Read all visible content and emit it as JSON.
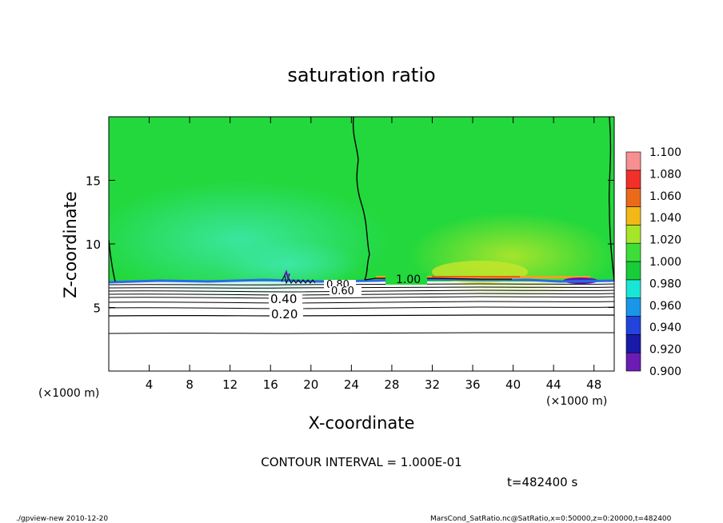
{
  "chart_data": {
    "type": "heatmap",
    "title": "saturation ratio",
    "xlabel": "X-coordinate",
    "ylabel": "Z-coordinate",
    "x_unit_left": "(×1000 m)",
    "x_unit_right": "(×1000 m)",
    "xlim": [
      0,
      50
    ],
    "ylim": [
      0,
      20
    ],
    "x_ticks": [
      4,
      8,
      12,
      16,
      20,
      24,
      28,
      32,
      36,
      40,
      44,
      48
    ],
    "y_ticks": [
      5,
      10,
      15
    ],
    "colorbar": {
      "levels": [
        0.9,
        0.92,
        0.94,
        0.96,
        0.98,
        1.0,
        1.02,
        1.04,
        1.06,
        1.08,
        1.1
      ],
      "tick_labels": [
        "0.900",
        "0.920",
        "0.940",
        "0.960",
        "0.980",
        "1.000",
        "1.020",
        "1.040",
        "1.060",
        "1.080",
        "1.100"
      ],
      "colors": [
        "#6a1cb4",
        "#1a1aa8",
        "#2244dd",
        "#1a96e8",
        "#1ae6d6",
        "#18cc3a",
        "#3ede3a",
        "#a6e62a",
        "#f2b818",
        "#ea6a1a",
        "#f2302a",
        "#f79090"
      ]
    },
    "contours": [
      {
        "label": "1.00",
        "z": 7.2
      },
      {
        "label": "0.80",
        "z": 6.8
      },
      {
        "label": "0.60",
        "z": 6.2
      },
      {
        "label": "0.40",
        "z": 5.4
      },
      {
        "label": "0.20",
        "z": 4.4
      }
    ],
    "contour_interval_text": "CONTOUR INTERVAL = 1.000E-01",
    "time_text": "t=482400 s"
  },
  "footer": {
    "left": "./gpview-new  2010-12-20",
    "right": "MarsCond_SatRatio.nc@SatRatio,x=0:50000,z=0:20000,t=482400"
  }
}
